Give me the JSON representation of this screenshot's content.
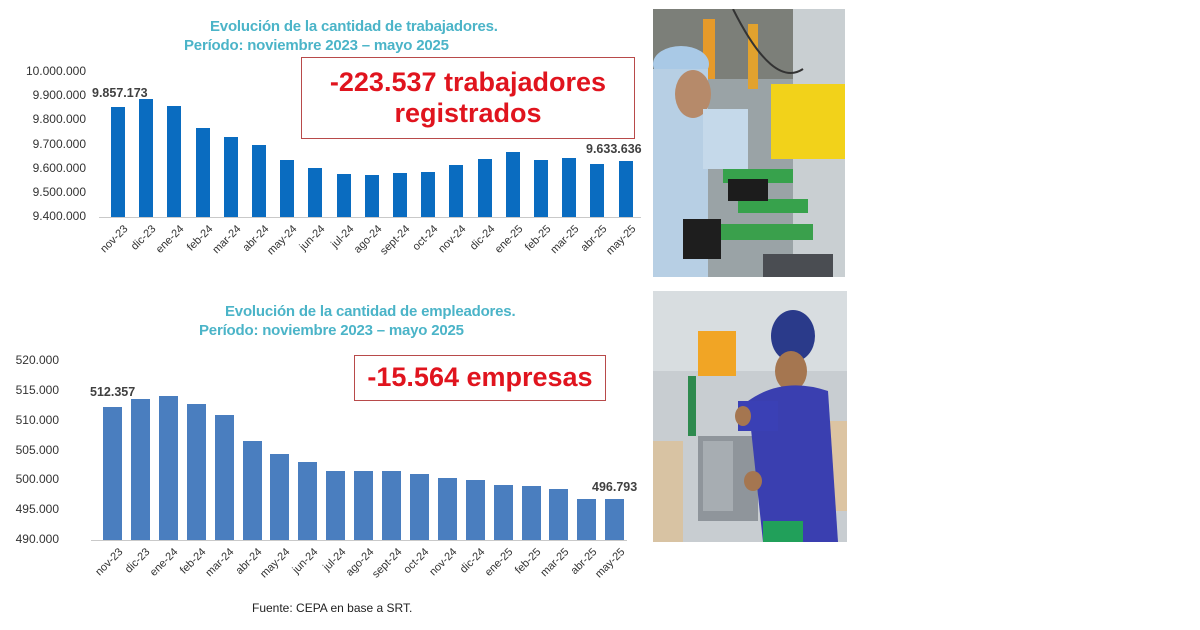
{
  "top_panel": {
    "title_line1": "Evolución de la cantidad de trabajadores.",
    "title_line2": "Período: noviembre 2023 – mayo 2025",
    "callout_line1": "-223.537 trabajadores",
    "callout_line2": "registrados",
    "first_label": "9.857.173",
    "last_label": "9.633.636",
    "yticks": [
      "10.000.000",
      "9.900.000",
      "9.800.000",
      "9.700.000",
      "9.600.000",
      "9.500.000",
      "9.400.000"
    ],
    "bar_color": "#0a6cc0"
  },
  "bottom_panel": {
    "title_line1": "Evolución de la cantidad de empleadores.",
    "title_line2": "Período: noviembre 2023 – mayo 2025",
    "callout_line1": "-15.564 empresas",
    "first_label": "512.357",
    "last_label": "496.793",
    "yticks": [
      "520.000",
      "515.000",
      "510.000",
      "505.000",
      "500.000",
      "495.000",
      "490.000"
    ],
    "bar_color": "#4a7ebf"
  },
  "source": "Fuente: CEPA en base a SRT.",
  "photos": {
    "top": "factory-assembly-line-workers-photo",
    "bottom": "factory-worker-blue-uniform-photo"
  },
  "chart_data": [
    {
      "type": "bar",
      "title": "Evolución de la cantidad de trabajadores. Período: noviembre 2023 – mayo 2025",
      "xlabel": "",
      "ylabel": "",
      "ylim": [
        9400000,
        10000000
      ],
      "grid": false,
      "legend": "none",
      "categories": [
        "nov-23",
        "dic-23",
        "ene-24",
        "feb-24",
        "mar-24",
        "abr-24",
        "may-24",
        "jun-24",
        "jul-24",
        "ago-24",
        "sept-24",
        "oct-24",
        "nov-24",
        "dic-24",
        "ene-25",
        "feb-25",
        "mar-25",
        "abr-25",
        "may-25"
      ],
      "values": [
        9857173,
        9888000,
        9859000,
        9768000,
        9731000,
        9698000,
        9636000,
        9603000,
        9578000,
        9574000,
        9582000,
        9586000,
        9615000,
        9640000,
        9669000,
        9636000,
        9645000,
        9620000,
        9633636
      ],
      "annotations": [
        "9.857.173",
        "9.633.636",
        "-223.537 trabajadores registrados"
      ]
    },
    {
      "type": "bar",
      "title": "Evolución de la cantidad de empleadores. Período: noviembre 2023 – mayo 2025",
      "xlabel": "",
      "ylabel": "",
      "ylim": [
        490000,
        520000
      ],
      "grid": false,
      "legend": "none",
      "categories": [
        "nov-23",
        "dic-23",
        "ene-24",
        "feb-24",
        "mar-24",
        "abr-24",
        "may-24",
        "jun-24",
        "jul-24",
        "ago-24",
        "sept-24",
        "oct-24",
        "nov-24",
        "dic-24",
        "ene-25",
        "feb-25",
        "mar-25",
        "abr-25",
        "may-25"
      ],
      "values": [
        512357,
        513700,
        514200,
        512800,
        511000,
        506600,
        504400,
        503100,
        501600,
        501500,
        501600,
        501000,
        500400,
        500000,
        499200,
        499100,
        498500,
        496800,
        496793
      ],
      "annotations": [
        "512.357",
        "496.793",
        "-15.564 empresas"
      ]
    }
  ]
}
